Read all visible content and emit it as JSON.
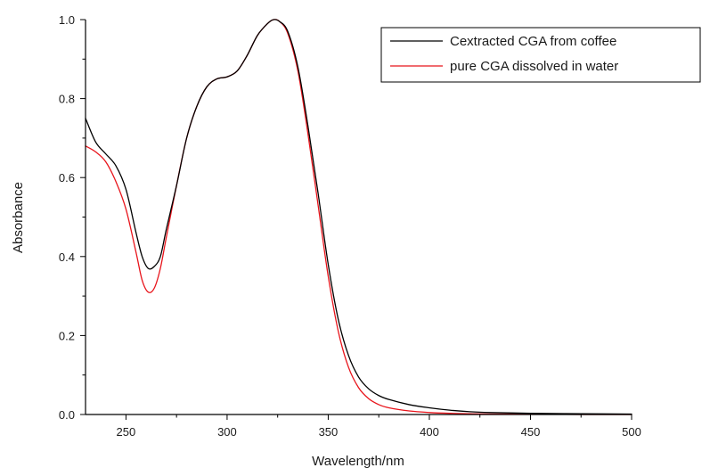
{
  "chart_data": {
    "type": "line",
    "title": "",
    "xlabel": "Wavelength/nm",
    "ylabel": "Absorbance",
    "xlim": [
      230,
      500
    ],
    "ylim": [
      0,
      1.0
    ],
    "x_ticks": [
      250,
      300,
      350,
      400,
      450,
      500
    ],
    "y_ticks": [
      0.0,
      0.2,
      0.4,
      0.6,
      0.8,
      1.0
    ],
    "x_tick_labels": [
      "250",
      "300",
      "350",
      "400",
      "450",
      "500"
    ],
    "y_tick_labels": [
      "0.0",
      "0.2",
      "0.4",
      "0.6",
      "0.8",
      "1.0"
    ],
    "grid": false,
    "legend_position": "top-right",
    "series": [
      {
        "name": "Cextracted CGA from coffee",
        "color": "#000000",
        "x": [
          230,
          235,
          240,
          245,
          250,
          255,
          258,
          261,
          264,
          267,
          270,
          275,
          280,
          285,
          290,
          295,
          300,
          305,
          310,
          315,
          320,
          323,
          326,
          330,
          335,
          340,
          345,
          350,
          355,
          360,
          365,
          370,
          375,
          380,
          390,
          400,
          410,
          420,
          430,
          450,
          475,
          500
        ],
        "y": [
          0.75,
          0.69,
          0.66,
          0.63,
          0.57,
          0.46,
          0.4,
          0.37,
          0.375,
          0.4,
          0.47,
          0.58,
          0.7,
          0.78,
          0.83,
          0.85,
          0.855,
          0.87,
          0.91,
          0.96,
          0.99,
          1.0,
          0.995,
          0.97,
          0.88,
          0.73,
          0.56,
          0.38,
          0.24,
          0.15,
          0.095,
          0.065,
          0.048,
          0.038,
          0.025,
          0.017,
          0.011,
          0.007,
          0.005,
          0.003,
          0.002,
          0.001
        ]
      },
      {
        "name": "pure CGA dissolved in water",
        "color": "#e8141b",
        "x": [
          230,
          235,
          240,
          245,
          250,
          255,
          258,
          261,
          264,
          267,
          270,
          275,
          280,
          285,
          290,
          295,
          300,
          305,
          310,
          315,
          320,
          323,
          326,
          330,
          335,
          340,
          345,
          350,
          355,
          360,
          365,
          370,
          375,
          380,
          390,
          400,
          410,
          420,
          430,
          450,
          475,
          500
        ],
        "y": [
          0.68,
          0.665,
          0.64,
          0.59,
          0.52,
          0.41,
          0.34,
          0.31,
          0.32,
          0.37,
          0.45,
          0.58,
          0.7,
          0.78,
          0.83,
          0.85,
          0.855,
          0.87,
          0.91,
          0.96,
          0.99,
          1.0,
          0.995,
          0.965,
          0.87,
          0.71,
          0.53,
          0.35,
          0.21,
          0.12,
          0.068,
          0.04,
          0.025,
          0.017,
          0.009,
          0.005,
          0.003,
          0.002,
          0.001,
          0.001,
          0.0,
          0.0
        ]
      }
    ]
  }
}
